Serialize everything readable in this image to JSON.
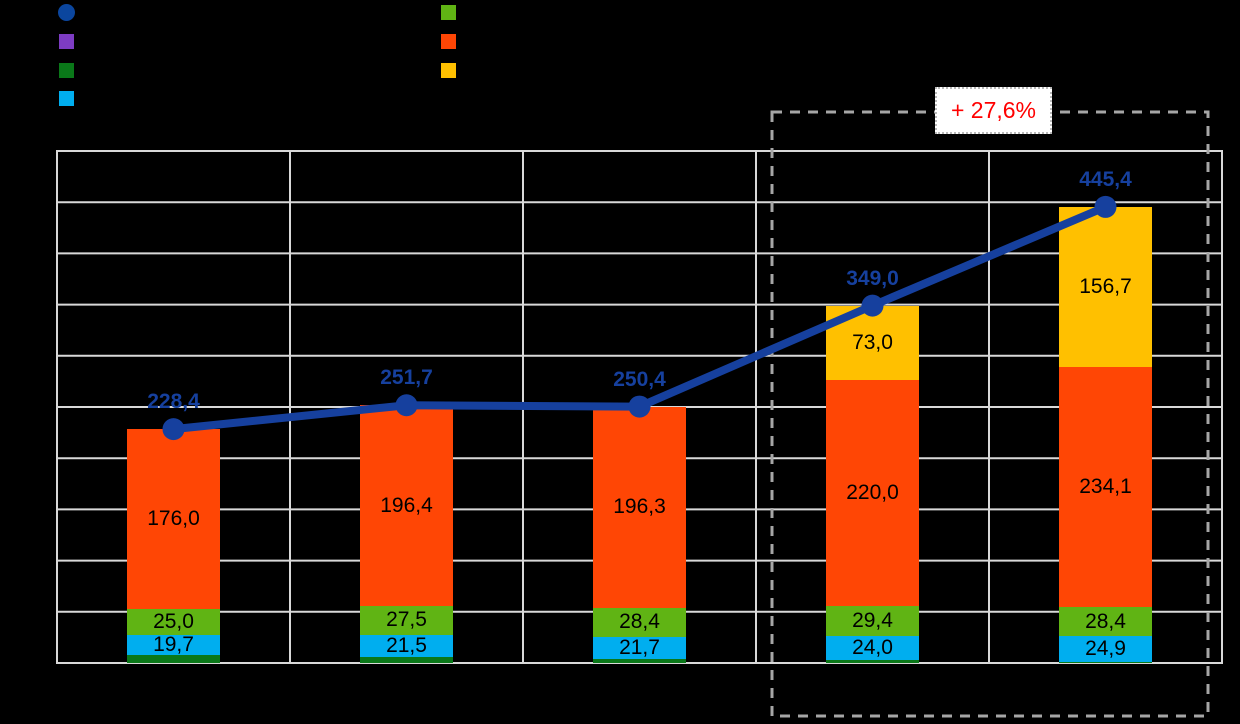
{
  "canvas": {
    "background": "#000000"
  },
  "legend": {
    "left_column": [
      {
        "name": "total-line-legend-marker",
        "shape": "circle",
        "color": "#0B469E"
      },
      {
        "name": "purple-series-legend-marker",
        "shape": "square",
        "color": "#7D3CC3"
      },
      {
        "name": "dark-green-series-legend-marker",
        "shape": "square",
        "color": "#0A7819"
      },
      {
        "name": "cyan-series-legend-marker",
        "shape": "square",
        "color": "#00AEEF"
      }
    ],
    "right_column": [
      {
        "name": "green-series-legend-marker",
        "shape": "square",
        "color": "#60B414"
      },
      {
        "name": "orange-series-legend-marker",
        "shape": "square",
        "color": "#FF4605"
      },
      {
        "name": "yellow-series-legend-marker",
        "shape": "square",
        "color": "#FFC000"
      }
    ]
  },
  "chart_data": {
    "type": "bar",
    "subtype": "stacked-bar-with-total-line",
    "categories": [
      "",
      "",
      "",
      "",
      ""
    ],
    "series": [
      {
        "name": "dark-green-segment",
        "color": "#0A7819",
        "values": [
          7.7,
          6.3,
          4.0,
          2.6,
          1.3
        ],
        "labels": [
          "",
          "",
          "",
          "",
          ""
        ]
      },
      {
        "name": "cyan-segment",
        "color": "#00AEEF",
        "values": [
          19.7,
          21.5,
          21.7,
          24.0,
          24.9
        ],
        "labels": [
          "19,7",
          "21,5",
          "21,7",
          "24,0",
          "24,9"
        ]
      },
      {
        "name": "green-segment",
        "color": "#60B414",
        "values": [
          25.0,
          27.5,
          28.4,
          29.4,
          28.4
        ],
        "labels": [
          "25,0",
          "27,5",
          "28,4",
          "29,4",
          "28,4"
        ]
      },
      {
        "name": "orange-segment",
        "color": "#FF4605",
        "values": [
          176.0,
          196.4,
          196.3,
          220.0,
          234.1
        ],
        "labels": [
          "176,0",
          "196,4",
          "196,3",
          "220,0",
          "234,1"
        ]
      },
      {
        "name": "yellow-segment",
        "color": "#FFC000",
        "values": [
          0,
          0,
          0,
          73.0,
          156.7
        ],
        "labels": [
          "",
          "",
          "",
          "73,0",
          "156,7"
        ]
      }
    ],
    "line": {
      "name": "total-line",
      "color": "#16409E",
      "label_color": "#16409E",
      "values": [
        228.4,
        251.7,
        250.4,
        349.0,
        445.4
      ],
      "labels": [
        "228,4",
        "251,7",
        "250,4",
        "349,0",
        "445,4"
      ]
    },
    "ylim": [
      0,
      500
    ],
    "y_grid_step": 50,
    "grid": "on",
    "gridline_color": "#D9D9D9"
  },
  "annotation": {
    "label": "+ 27,6%",
    "text_color": "#FF0000",
    "box_color": "#A6A6A6",
    "box_style": "dashed",
    "covers_categories": [
      4,
      5
    ]
  }
}
